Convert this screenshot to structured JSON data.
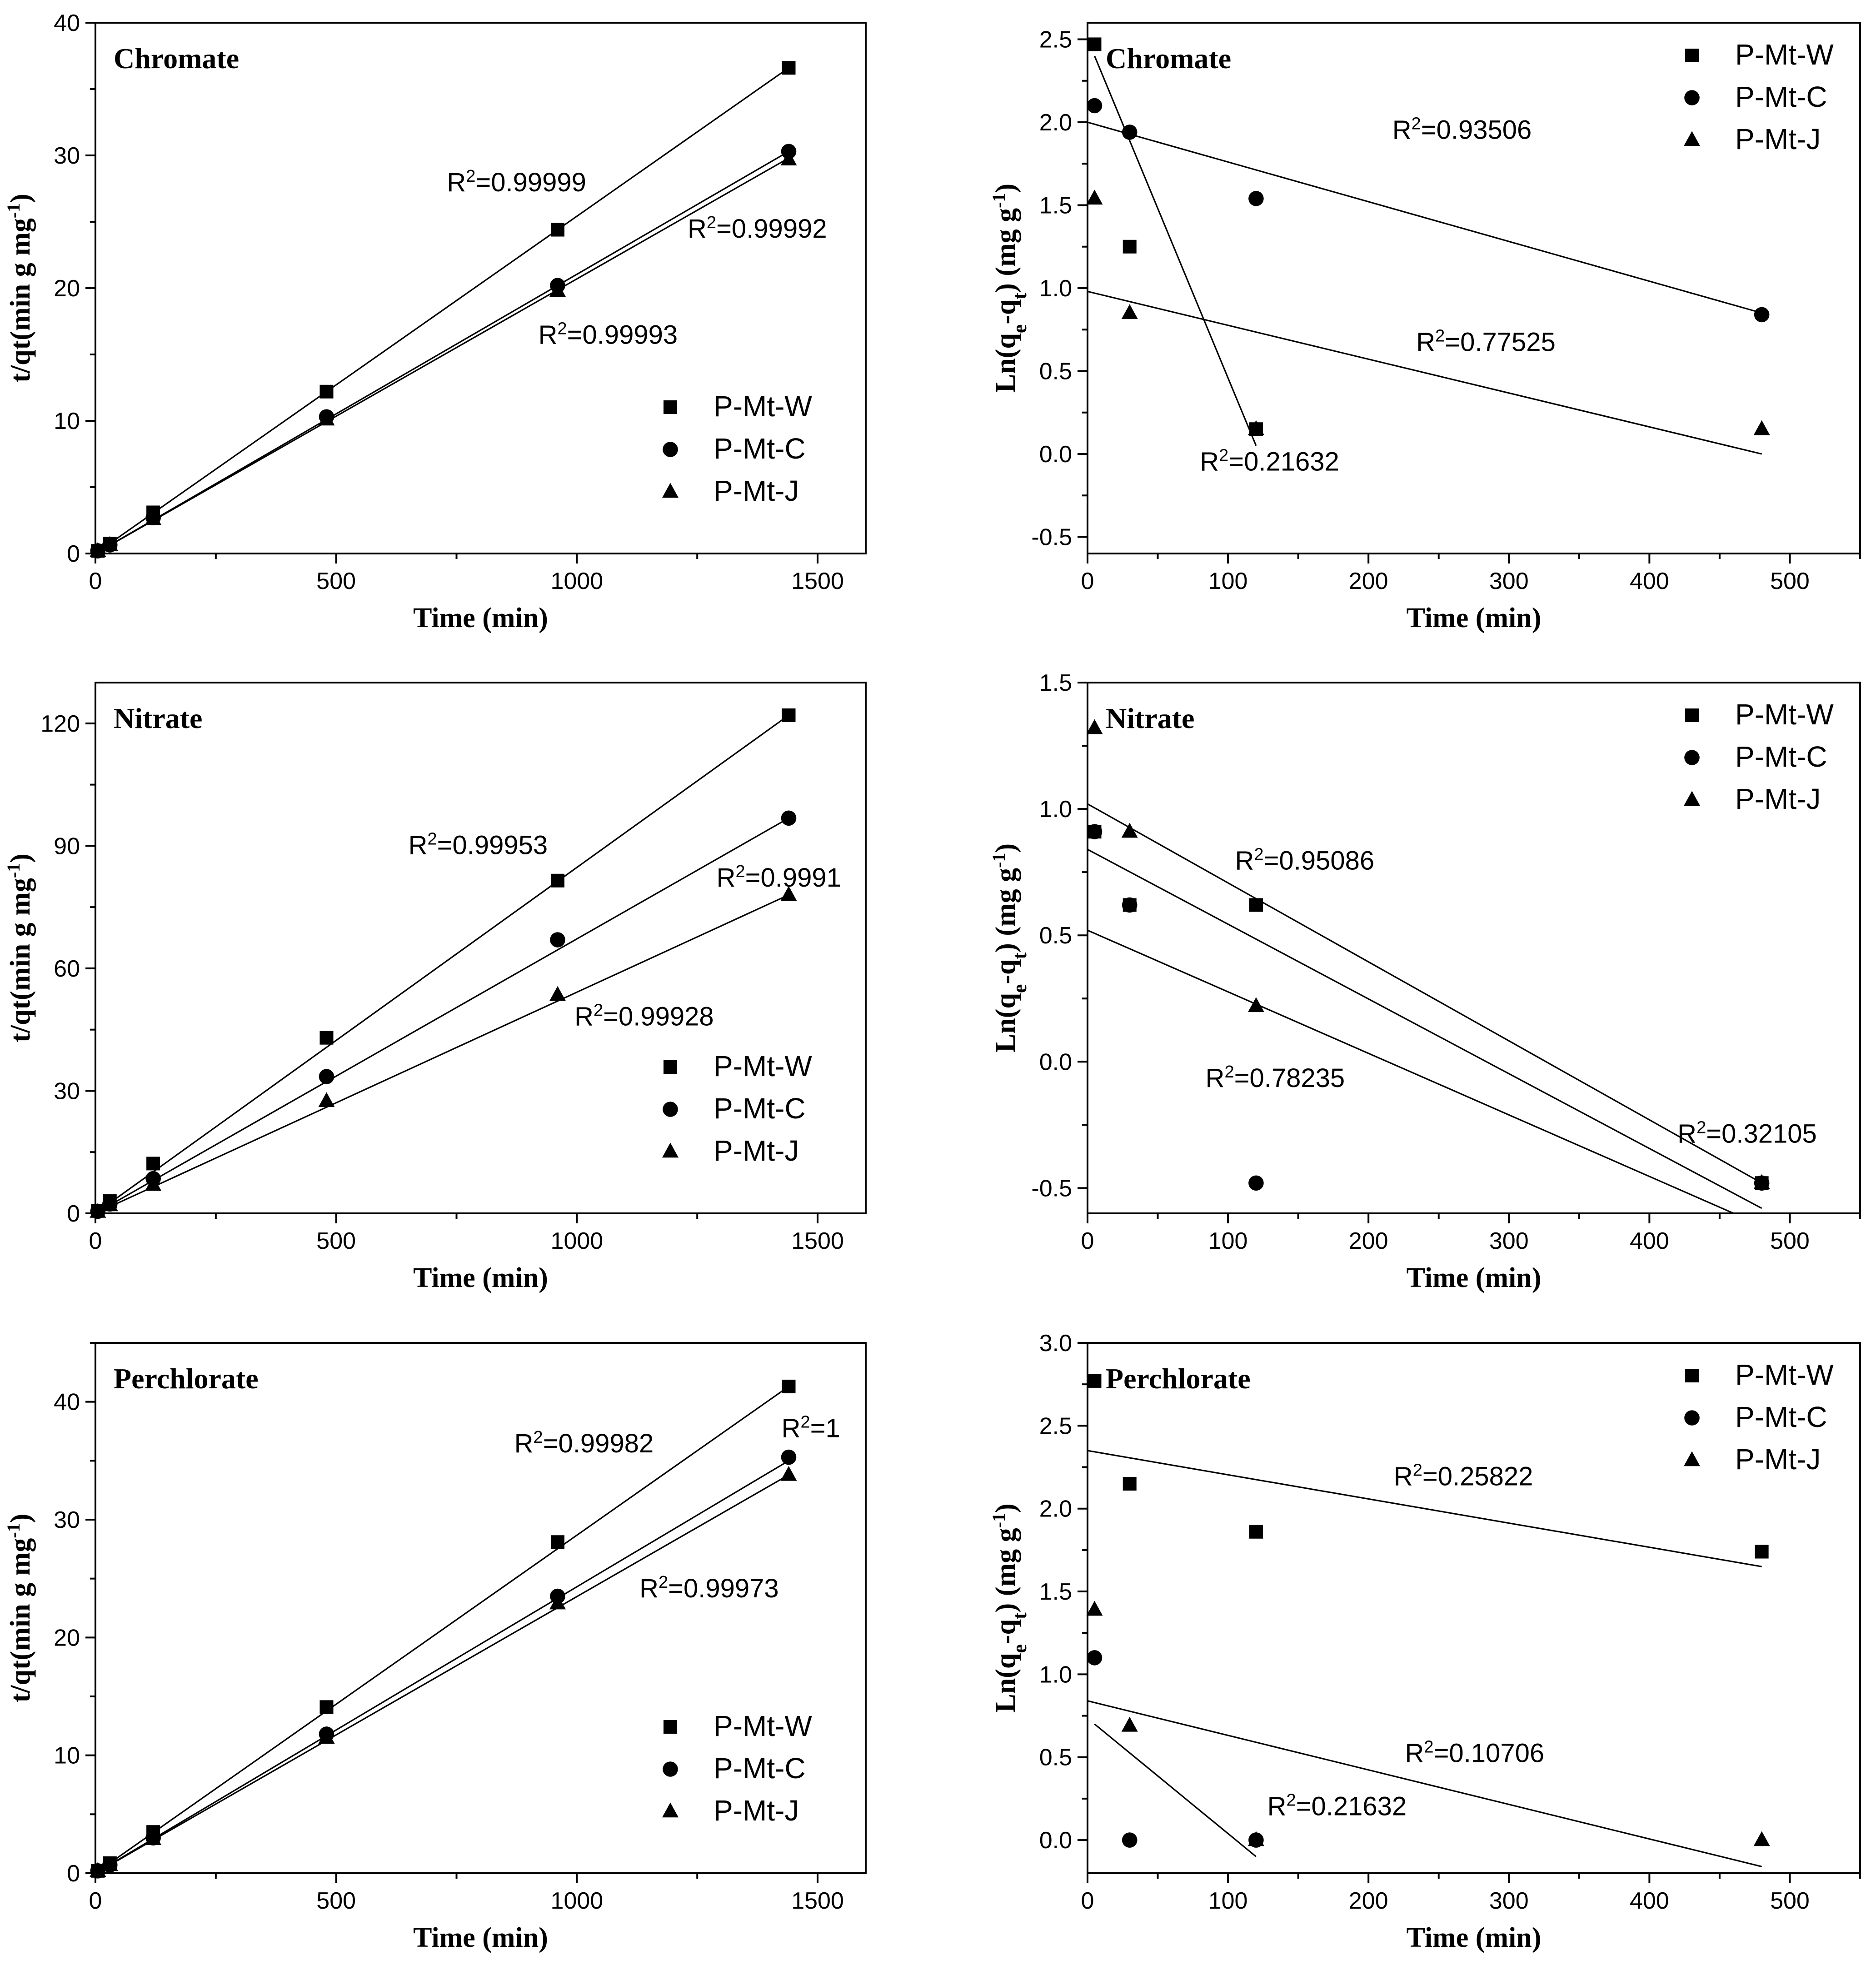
{
  "chart_data": [
    {
      "type": "scatter",
      "panel": "pseudo-second-order",
      "title": "Chromate",
      "xlabel": "Time (min)",
      "ylabel_parts": {
        "base": "t/qt(min g mg",
        "sup": "-1",
        "tail": ")"
      },
      "xlim": [
        0,
        1600
      ],
      "ylim": [
        0,
        40
      ],
      "xticks": [
        0,
        500,
        1000,
        1500
      ],
      "yticks": [
        0,
        10,
        20,
        30,
        40
      ],
      "minor_x": 250,
      "minor_y": 5,
      "legend_position": "bottom-right",
      "series": [
        {
          "name": "P-Mt-W",
          "marker": "square",
          "x": [
            5,
            30,
            120,
            480,
            960,
            1440
          ],
          "y": [
            0.2,
            0.75,
            3.1,
            12.2,
            24.4,
            36.6
          ],
          "fit": [
            [
              0,
              0
            ],
            [
              1440,
              36.6
            ]
          ]
        },
        {
          "name": "P-Mt-C",
          "marker": "circle",
          "x": [
            5,
            30,
            120,
            480,
            960,
            1440
          ],
          "y": [
            0.2,
            0.65,
            2.7,
            10.3,
            20.2,
            30.3
          ],
          "fit": [
            [
              0,
              0
            ],
            [
              1440,
              30.3
            ]
          ]
        },
        {
          "name": "P-Mt-J",
          "marker": "triangle",
          "x": [
            5,
            30,
            120,
            480,
            960,
            1440
          ],
          "y": [
            0.2,
            0.65,
            2.6,
            10.1,
            19.8,
            29.7
          ],
          "fit": [
            [
              0,
              0
            ],
            [
              1440,
              29.8
            ]
          ]
        }
      ],
      "annotations": [
        {
          "label": "R2=0.99999",
          "base": "R",
          "sup": "2",
          "value": "=0.99999",
          "at": [
            730,
            27.3
          ]
        },
        {
          "label": "R2=0.99992",
          "base": "R",
          "sup": "2",
          "value": "=0.99992",
          "at": [
            1230,
            23.8
          ]
        },
        {
          "label": "R2=0.99993",
          "base": "R",
          "sup": "2",
          "value": "=0.99993",
          "at": [
            920,
            15.8
          ]
        }
      ]
    },
    {
      "type": "scatter",
      "panel": "pseudo-first-order",
      "title": "Chromate",
      "xlabel": "Time (min)",
      "ylabel_parts": {
        "pre": "Ln(q",
        "sub1": "e",
        "mid": "-q",
        "sub2": "t",
        "post": ") (mg g",
        "sup": "-1",
        "tail": ")"
      },
      "xlim": [
        0,
        550
      ],
      "ylim": [
        -0.6,
        2.6
      ],
      "xticks": [
        0,
        100,
        200,
        300,
        400,
        500
      ],
      "yticks": [
        -0.5,
        0.0,
        0.5,
        1.0,
        1.5,
        2.0,
        2.5
      ],
      "ytick_labels": [
        "-0.5",
        "0.0",
        "0.5",
        "1.0",
        "1.5",
        "2.0",
        "2.5"
      ],
      "minor_x": 50,
      "minor_y": 0.25,
      "legend_position": "top-right",
      "series": [
        {
          "name": "P-Mt-W",
          "marker": "square",
          "x": [
            5,
            30,
            120
          ],
          "y": [
            2.47,
            1.25,
            0.15
          ],
          "fit": [
            [
              5,
              2.4
            ],
            [
              120,
              0.05
            ]
          ]
        },
        {
          "name": "P-Mt-C",
          "marker": "circle",
          "x": [
            5,
            30,
            120,
            480
          ],
          "y": [
            2.1,
            1.94,
            1.54,
            0.84
          ],
          "fit": [
            [
              0,
              2.0
            ],
            [
              480,
              0.85
            ]
          ]
        },
        {
          "name": "P-Mt-J",
          "marker": "triangle",
          "x": [
            5,
            30,
            120,
            480
          ],
          "y": [
            1.54,
            0.85,
            0.15,
            0.15
          ],
          "fit": [
            [
              0,
              0.98
            ],
            [
              480,
              0.0
            ]
          ]
        }
      ],
      "annotations": [
        {
          "label": "R2=0.93506",
          "base": "R",
          "sup": "2",
          "value": "=0.93506",
          "at": [
            217,
            1.9
          ]
        },
        {
          "label": "R2=0.77525",
          "base": "R",
          "sup": "2",
          "value": "=0.77525",
          "at": [
            234,
            0.62
          ]
        },
        {
          "label": "R2=0.21632",
          "base": "R",
          "sup": "2",
          "value": "=0.21632",
          "at": [
            80,
            -0.1
          ]
        }
      ]
    },
    {
      "type": "scatter",
      "panel": "pseudo-second-order",
      "title": "Nitrate",
      "xlabel": "Time (min)",
      "ylabel_parts": {
        "base": "t/qt(min g mg",
        "sup": "-1",
        "tail": ")"
      },
      "xlim": [
        0,
        1600
      ],
      "ylim": [
        0,
        130
      ],
      "xticks": [
        0,
        500,
        1000,
        1500
      ],
      "yticks": [
        0,
        30,
        60,
        90,
        120
      ],
      "minor_x": 250,
      "minor_y": 15,
      "legend_position": "bottom-right",
      "series": [
        {
          "name": "P-Mt-W",
          "marker": "square",
          "x": [
            5,
            30,
            120,
            480,
            960,
            1440
          ],
          "y": [
            0.6,
            3.0,
            12.2,
            43.0,
            81.5,
            122.0
          ],
          "fit": [
            [
              0,
              0
            ],
            [
              1440,
              122.0
            ]
          ]
        },
        {
          "name": "P-Mt-C",
          "marker": "circle",
          "x": [
            5,
            30,
            120,
            480,
            960,
            1440
          ],
          "y": [
            0.5,
            2.3,
            8.5,
            33.5,
            67.0,
            96.8
          ],
          "fit": [
            [
              0,
              0
            ],
            [
              1440,
              96.8
            ]
          ]
        },
        {
          "name": "P-Mt-J",
          "marker": "triangle",
          "x": [
            5,
            30,
            120,
            480,
            960,
            1440
          ],
          "y": [
            0.4,
            2.0,
            7.0,
            27.5,
            53.5,
            78.0
          ],
          "fit": [
            [
              0,
              0
            ],
            [
              1440,
              78.0
            ]
          ]
        }
      ],
      "annotations": [
        {
          "label": "R2=0.99953",
          "base": "R",
          "sup": "2",
          "value": "=0.99953",
          "at": [
            650,
            88
          ]
        },
        {
          "label": "R2=0.9991",
          "base": "R",
          "sup": "2",
          "value": "=0.9991",
          "at": [
            1290,
            80
          ]
        },
        {
          "label": "R2=0.99928",
          "base": "R",
          "sup": "2",
          "value": "=0.99928",
          "at": [
            995,
            46
          ]
        }
      ]
    },
    {
      "type": "scatter",
      "panel": "pseudo-first-order",
      "title": "Nitrate",
      "xlabel": "Time (min)",
      "ylabel_parts": {
        "pre": "Ln(q",
        "sub1": "e",
        "mid": "-q",
        "sub2": "t",
        "post": ") (mg g",
        "sup": "-1",
        "tail": ")"
      },
      "xlim": [
        0,
        550
      ],
      "ylim": [
        -0.6,
        1.5
      ],
      "xticks": [
        0,
        100,
        200,
        300,
        400,
        500
      ],
      "yticks": [
        -0.5,
        0.0,
        0.5,
        1.0,
        1.5
      ],
      "ytick_labels": [
        "-0.5",
        "0.0",
        "0.5",
        "1.0",
        "1.5"
      ],
      "minor_x": 50,
      "minor_y": 0.25,
      "legend_position": "top-right",
      "series": [
        {
          "name": "P-Mt-W",
          "marker": "square",
          "x": [
            5,
            30,
            120,
            480
          ],
          "y": [
            0.91,
            0.62,
            0.62,
            -0.48
          ],
          "fit": [
            [
              0,
              0.84
            ],
            [
              480,
              -0.58
            ]
          ]
        },
        {
          "name": "P-Mt-C",
          "marker": "circle",
          "x": [
            5,
            30,
            120,
            480
          ],
          "y": [
            0.91,
            0.62,
            -0.48,
            -0.48
          ],
          "fit": [
            [
              0,
              0.52
            ],
            [
              460,
              -0.6
            ]
          ]
        },
        {
          "name": "P-Mt-J",
          "marker": "triangle",
          "x": [
            5,
            30,
            120,
            480
          ],
          "y": [
            1.32,
            0.91,
            0.22,
            -0.48
          ],
          "fit": [
            [
              0,
              1.02
            ],
            [
              480,
              -0.48
            ]
          ]
        }
      ],
      "annotations": [
        {
          "label": "R2=0.95086",
          "base": "R",
          "sup": "2",
          "value": "=0.95086",
          "at": [
            105,
            0.76
          ]
        },
        {
          "label": "R2=0.78235",
          "base": "R",
          "sup": "2",
          "value": "=0.78235",
          "at": [
            84,
            -0.1
          ]
        },
        {
          "label": "R2=0.32105",
          "base": "R",
          "sup": "2",
          "value": "=0.32105",
          "at": [
            420,
            -0.32
          ]
        }
      ]
    },
    {
      "type": "scatter",
      "panel": "pseudo-second-order",
      "title": "Perchlorate",
      "xlabel": "Time (min)",
      "ylabel_parts": {
        "base": "t/qt(min g mg",
        "sup": "-1",
        "tail": ")"
      },
      "xlim": [
        0,
        1600
      ],
      "ylim": [
        0,
        45
      ],
      "xticks": [
        0,
        500,
        1000,
        1500
      ],
      "yticks": [
        0,
        10,
        20,
        30,
        40
      ],
      "minor_x": 250,
      "minor_y": 5,
      "legend_position": "bottom-right",
      "series": [
        {
          "name": "P-Mt-W",
          "marker": "square",
          "x": [
            5,
            30,
            120,
            480,
            960,
            1440
          ],
          "y": [
            0.2,
            0.85,
            3.5,
            14.1,
            28.1,
            41.3
          ],
          "fit": [
            [
              0,
              0
            ],
            [
              1440,
              41.3
            ]
          ]
        },
        {
          "name": "P-Mt-C",
          "marker": "circle",
          "x": [
            5,
            30,
            120,
            480,
            960,
            1440
          ],
          "y": [
            0.2,
            0.7,
            3.0,
            11.8,
            23.5,
            35.3
          ],
          "fit": [
            [
              0,
              0
            ],
            [
              1440,
              35.0
            ]
          ]
        },
        {
          "name": "P-Mt-J",
          "marker": "triangle",
          "x": [
            5,
            30,
            120,
            480,
            960,
            1440
          ],
          "y": [
            0.2,
            0.7,
            2.9,
            11.5,
            22.9,
            33.8
          ],
          "fit": [
            [
              0,
              0
            ],
            [
              1440,
              33.8
            ]
          ]
        }
      ],
      "annotations": [
        {
          "label": "R2=0.99982",
          "base": "R",
          "sup": "2",
          "value": "=0.99982",
          "at": [
            870,
            35.7
          ]
        },
        {
          "label": "R2=1",
          "base": "R",
          "sup": "2",
          "value": "=1",
          "at": [
            1425,
            37.0
          ]
        },
        {
          "label": "R2=0.99973",
          "base": "R",
          "sup": "2",
          "value": "=0.99973",
          "at": [
            1130,
            23.4
          ]
        }
      ]
    },
    {
      "type": "scatter",
      "panel": "pseudo-first-order",
      "title": "Perchlorate",
      "xlabel": "Time (min)",
      "ylabel_parts": {
        "pre": "Ln(q",
        "sub1": "e",
        "mid": "-q",
        "sub2": "t",
        "post": ") (mg g",
        "sup": "-1",
        "tail": ")"
      },
      "xlim": [
        0,
        550
      ],
      "ylim": [
        -0.2,
        3.0
      ],
      "xticks": [
        0,
        100,
        200,
        300,
        400,
        500
      ],
      "yticks": [
        0.0,
        0.5,
        1.0,
        1.5,
        2.0,
        2.5,
        3.0
      ],
      "ytick_labels": [
        "0.0",
        "0.5",
        "1.0",
        "1.5",
        "2.0",
        "2.5",
        "3.0"
      ],
      "minor_x": 50,
      "minor_y": 0.25,
      "legend_position": "top-right",
      "series": [
        {
          "name": "P-Mt-W",
          "marker": "square",
          "x": [
            5,
            30,
            120,
            480
          ],
          "y": [
            2.77,
            2.15,
            1.86,
            1.74
          ],
          "fit": [
            [
              0,
              2.35
            ],
            [
              480,
              1.65
            ]
          ]
        },
        {
          "name": "P-Mt-C",
          "marker": "circle",
          "x": [
            5,
            30,
            120
          ],
          "y": [
            1.1,
            0.0,
            0.0
          ],
          "fit": [
            [
              5,
              0.7
            ],
            [
              120,
              -0.1
            ]
          ]
        },
        {
          "name": "P-Mt-J",
          "marker": "triangle",
          "x": [
            5,
            30,
            120,
            480
          ],
          "y": [
            1.39,
            0.69,
            0.0,
            0.0
          ],
          "fit": [
            [
              0,
              0.84
            ],
            [
              480,
              -0.16
            ]
          ]
        }
      ],
      "annotations": [
        {
          "label": "R2=0.25822",
          "base": "R",
          "sup": "2",
          "value": "=0.25822",
          "at": [
            218,
            2.14
          ]
        },
        {
          "label": "R2=0.10706",
          "base": "R",
          "sup": "2",
          "value": "=0.10706",
          "at": [
            226,
            0.47
          ]
        },
        {
          "label": "R2=0.21632",
          "base": "R",
          "sup": "2",
          "value": "=0.21632",
          "at": [
            128,
            0.15
          ]
        }
      ]
    }
  ]
}
